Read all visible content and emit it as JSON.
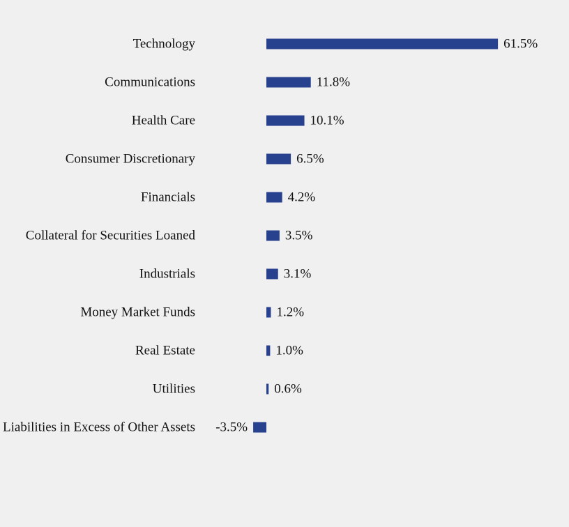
{
  "chart_data": {
    "type": "bar",
    "orientation": "horizontal",
    "categories": [
      "Technology",
      "Communications",
      "Health Care",
      "Consumer Discretionary",
      "Financials",
      "Collateral for Securities Loaned",
      "Industrials",
      "Money Market Funds",
      "Real Estate",
      "Utilities",
      "Liabilities in Excess of Other Assets"
    ],
    "values": [
      61.5,
      11.8,
      10.1,
      6.5,
      4.2,
      3.5,
      3.1,
      1.2,
      1.0,
      0.6,
      -3.5
    ],
    "value_labels": [
      "61.5%",
      "11.8%",
      "10.1%",
      "6.5%",
      "4.2%",
      "3.5%",
      "3.1%",
      "1.2%",
      "1.0%",
      "0.6%",
      "-3.5%"
    ],
    "unit": "%",
    "title": "",
    "xlabel": "",
    "ylabel": "",
    "grid": false,
    "legend": "none",
    "bar_color": "#27418e",
    "background": "#f0f0f1"
  }
}
